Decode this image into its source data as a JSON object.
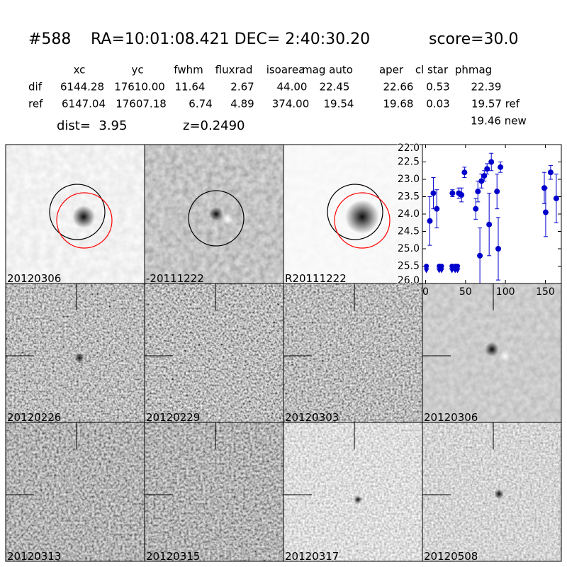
{
  "header": {
    "id": "#588",
    "coords": "RA=10:01:08.421 DEC= 2:40:30.20",
    "score": "score=30.0"
  },
  "table": {
    "columns": [
      "xc",
      "yc",
      "fwhm",
      "fluxrad",
      "isoarea",
      "mag auto",
      "aper",
      "cl star",
      "phmag"
    ],
    "rows": [
      [
        "dif",
        "6144.28",
        "17610.00",
        "11.64",
        "2.67",
        "44.00",
        "22.45",
        "22.66",
        "0.53",
        "22.39"
      ],
      [
        "ref",
        "6147.04",
        "17607.18",
        "6.74",
        "4.89",
        "374.00",
        "19.54",
        "19.68",
        "0.03",
        "19.57 ref"
      ]
    ]
  },
  "extra": {
    "dist": "dist=  3.95",
    "z": "z=0.2490",
    "new": "19.46 new"
  },
  "panels": [
    {
      "label": "20120306"
    },
    {
      "label": "-20111222"
    },
    {
      "label": "R20111222"
    },
    {
      "label": "20120226"
    },
    {
      "label": "20120229"
    },
    {
      "label": "20120303"
    },
    {
      "label": "20120306",
      "color": "#ff0000"
    },
    {
      "label": "20120313"
    },
    {
      "label": "20120315"
    },
    {
      "label": "20120317"
    },
    {
      "label": "20120508"
    }
  ],
  "chart_data": {
    "type": "scatter",
    "xlim": [
      -4,
      170
    ],
    "xticks": [
      0,
      50,
      100,
      150
    ],
    "ylim": [
      26,
      22
    ],
    "inverted_y": true,
    "yticks": [
      {
        "value": 22,
        "label": "22.0"
      },
      {
        "value": 22.5,
        "label": "22.5"
      },
      {
        "value": 23,
        "label": "23.0"
      },
      {
        "value": 23.5,
        "label": "23.5"
      },
      {
        "value": 24,
        "label": "24.0"
      },
      {
        "value": 24.5,
        "label": "24.5"
      },
      {
        "value": 25,
        "label": "25.0"
      },
      {
        "value": 25.5,
        "label": "25.5"
      },
      {
        "value": 26,
        "label": "26.0"
      }
    ],
    "series": [
      {
        "color": "#0000cc",
        "marker": "circle",
        "x": [
          5.3,
          9.7,
          14,
          33.6,
          41.6,
          45,
          48.7,
          62.8,
          65.5,
          68,
          70,
          73.5,
          77,
          79.6,
          82.3,
          89.4,
          91,
          93.8,
          148.7,
          150.4,
          156.6,
          163.7
        ],
        "values": [
          24.2,
          23.4,
          23.85,
          23.4,
          23.4,
          23.45,
          22.8,
          23.85,
          23.35,
          25.2,
          23.05,
          22.9,
          22.7,
          24.3,
          22.5,
          23.35,
          25.0,
          22.65,
          23.25,
          23.95,
          22.8,
          23.55
        ],
        "errors": [
          0.7,
          0.45,
          0.55,
          0.1,
          0.15,
          0.2,
          0.15,
          0.3,
          0.3,
          0.8,
          0.2,
          0.15,
          0.15,
          0.9,
          0.25,
          0.5,
          0.9,
          0.15,
          0.45,
          0.7,
          0.2,
          0.7
        ]
      },
      {
        "color": "#0000cc",
        "marker": "triangle-down",
        "x": [
          1,
          17,
          20,
          33,
          37,
          40
        ],
        "values": [
          25.5,
          25.5,
          25.5,
          25.5,
          25.5,
          25.5
        ]
      }
    ]
  }
}
